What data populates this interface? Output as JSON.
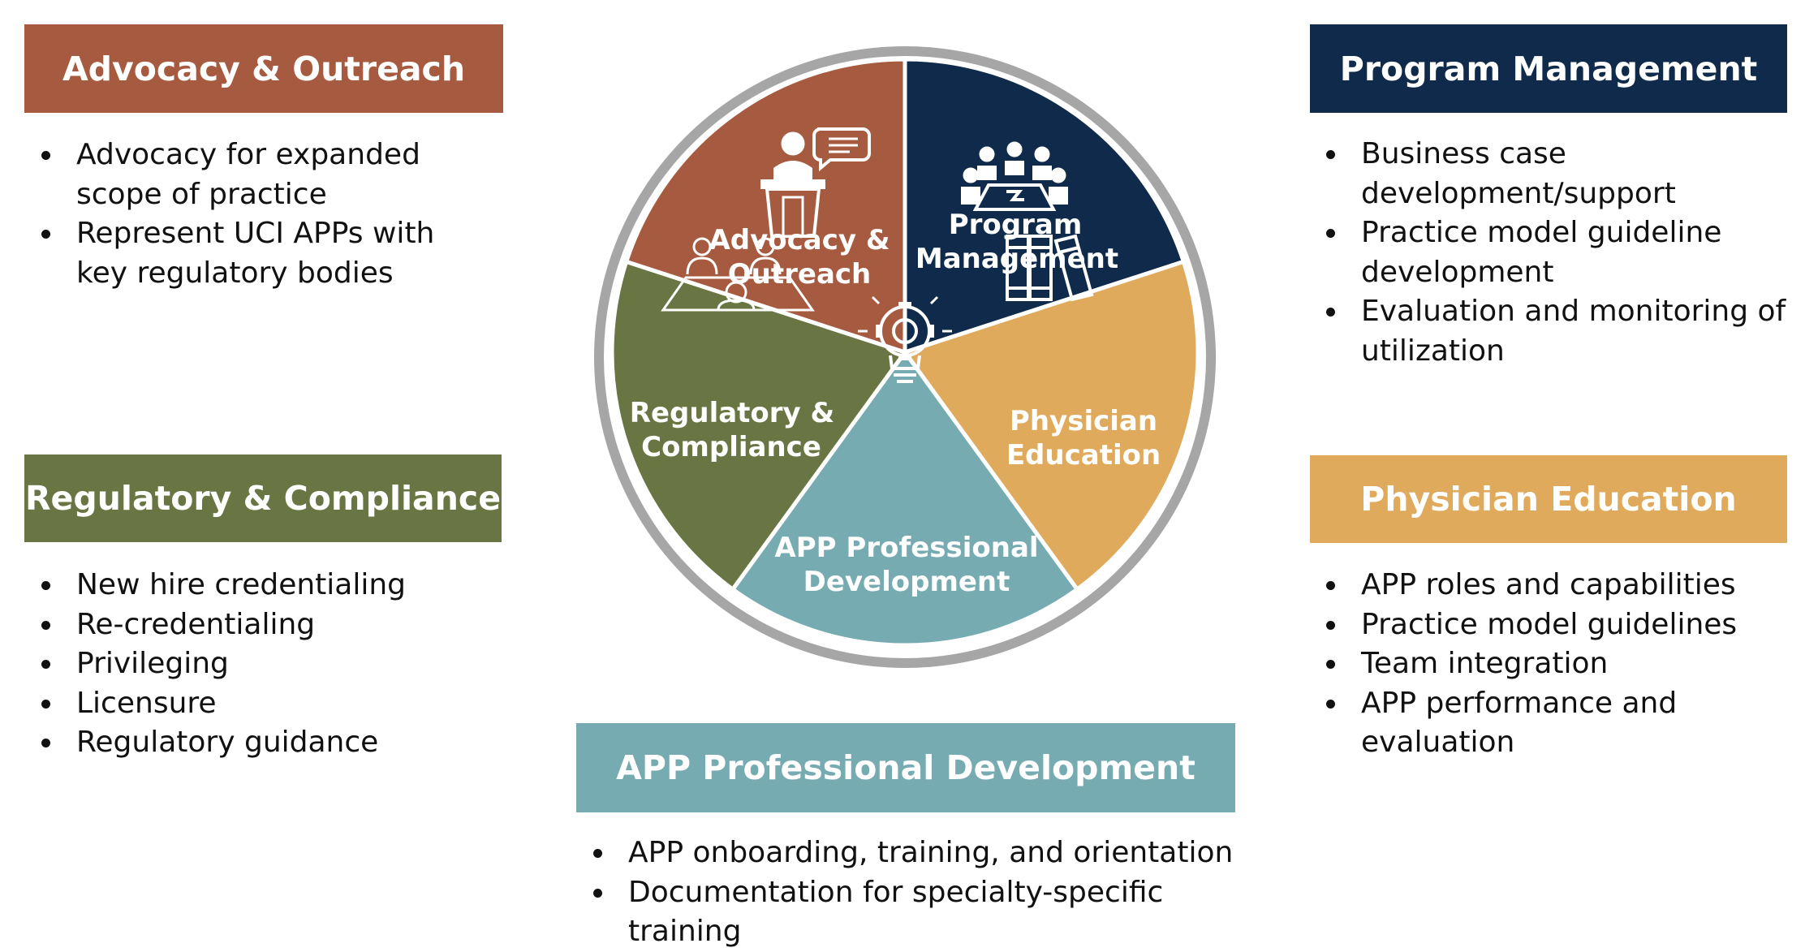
{
  "colors": {
    "advocacy": "#a65a3f",
    "program": "#0f2a4a",
    "physician": "#e0aa5c",
    "app": "#76abb1",
    "regulatory": "#697644",
    "ring": "#a6a6a6"
  },
  "wheel": {
    "segments": [
      {
        "key": "program",
        "line1": "Program",
        "line2": "Management",
        "icon": "meeting-table-icon"
      },
      {
        "key": "physician",
        "line1": "Physician",
        "line2": "Education",
        "icon": "books-icon"
      },
      {
        "key": "app",
        "line1": "APP Professional",
        "line2": "Development",
        "icon": "lightbulb-gear-icon"
      },
      {
        "key": "regulatory",
        "line1": "Regulatory &",
        "line2": "Compliance",
        "icon": "interview-table-icon"
      },
      {
        "key": "advocacy",
        "line1": "Advocacy &",
        "line2": "Outreach",
        "icon": "speaker-podium-icon"
      }
    ]
  },
  "panels": {
    "advocacy": {
      "title": "Advocacy & Outreach",
      "lines": [
        "Advocacy for expanded",
        "scope of practice",
        "Represent UCI APPs with",
        "key regulatory bodies"
      ]
    },
    "program": {
      "title": "Program Management",
      "lines": [
        "Business case",
        "development/support",
        "Practice model guideline",
        "development",
        "Evaluation and monitoring of",
        "utilization"
      ]
    },
    "regulatory": {
      "title": "Regulatory & Compliance",
      "lines": [
        "New hire credentialing",
        "Re-credentialing",
        "Privileging",
        "Licensure",
        "Regulatory guidance"
      ]
    },
    "physician": {
      "title": "Physician Education",
      "lines": [
        "APP roles and capabilities",
        "Practice model guidelines",
        "Team integration",
        "APP performance and",
        "evaluation"
      ]
    },
    "app": {
      "title": "APP Professional Development",
      "lines": [
        "APP onboarding, training, and orientation",
        "Documentation for specialty-specific training"
      ]
    }
  }
}
